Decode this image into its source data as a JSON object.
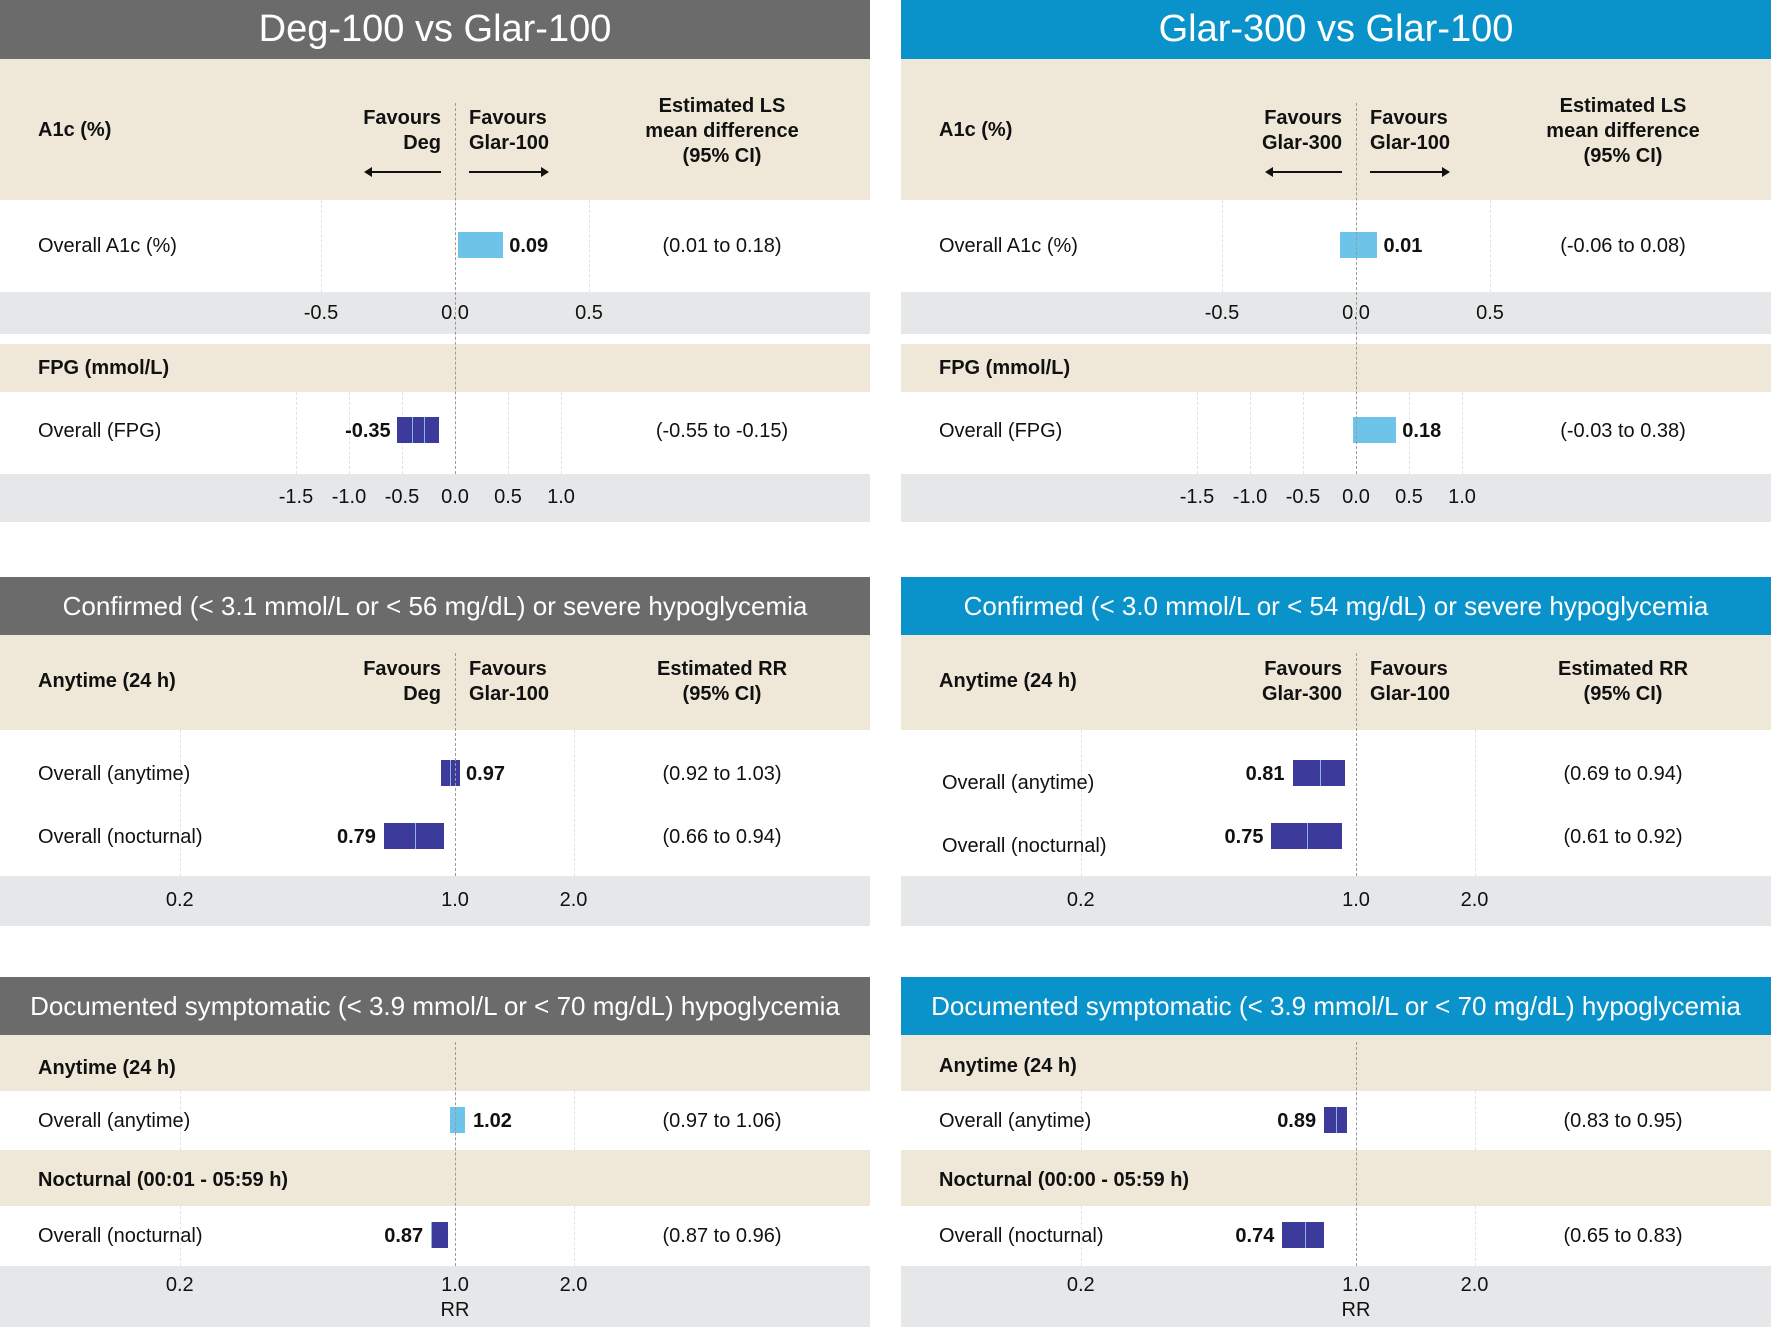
{
  "columns": [
    {
      "title": "Deg-100 vs Glar-100",
      "theme": "gray",
      "favours_left": [
        "Favours",
        "Deg"
      ],
      "favours_right": [
        "Favours",
        "Glar-100"
      ],
      "a1c": {
        "label": "A1c (%)",
        "est_header": [
          "Estimated LS",
          "mean difference",
          "(95% CI)"
        ],
        "row_label": "Overall A1c (%)",
        "value_label": "0.09",
        "ci": "(0.01 to 0.18)",
        "ticks": [
          "-0.5",
          "0.0",
          "0.5"
        ]
      },
      "fpg": {
        "label": "FPG (mmol/L)",
        "row_label": "Overall (FPG)",
        "value_label": "-0.35",
        "ci": "(-0.55 to -0.15)",
        "ticks": [
          "-1.5",
          "-1.0",
          "-0.5",
          "0.0",
          "0.5",
          "1.0"
        ]
      },
      "confirmed": {
        "title": "Confirmed (< 3.1 mmol/L or < 56 mg/dL) or severe hypoglycemia",
        "label": "Anytime (24 h)",
        "est_header": [
          "Estimated RR",
          "(95% CI)"
        ],
        "rows": [
          {
            "label": "Overall (anytime)",
            "value_label": "0.97",
            "ci": "(0.92 to 1.03)"
          },
          {
            "label": "Overall (nocturnal)",
            "value_label": "0.79",
            "ci": "(0.66 to 0.94)"
          }
        ],
        "ticks": [
          "0.2",
          "1.0",
          "2.0"
        ]
      },
      "documented": {
        "title": "Documented symptomatic (< 3.9 mmol/L or < 70 mg/dL) hypoglycemia",
        "label_anytime": "Anytime (24 h)",
        "label_nocturnal": "Nocturnal (00:01 - 05:59 h)",
        "rows": [
          {
            "label": "Overall (anytime)",
            "value_label": "1.02",
            "ci": "(0.97 to 1.06)"
          },
          {
            "label": "Overall (nocturnal)",
            "value_label": "0.87",
            "ci": "(0.87 to 0.96)"
          }
        ],
        "ticks": [
          "0.2",
          "1.0",
          "2.0"
        ],
        "axis_label": "RR"
      }
    },
    {
      "title": "Glar-300 vs Glar-100",
      "theme": "blue",
      "favours_left": [
        "Favours",
        "Glar-300"
      ],
      "favours_right": [
        "Favours",
        "Glar-100"
      ],
      "a1c": {
        "label": "A1c (%)",
        "est_header": [
          "Estimated LS",
          "mean difference",
          "(95% CI)"
        ],
        "row_label": "Overall A1c (%)",
        "value_label": "0.01",
        "ci": "(-0.06 to 0.08)",
        "ticks": [
          "-0.5",
          "0.0",
          "0.5"
        ]
      },
      "fpg": {
        "label": "FPG (mmol/L)",
        "row_label": "Overall (FPG)",
        "value_label": "0.18",
        "ci": "(-0.03 to 0.38)",
        "ticks": [
          "-1.5",
          "-1.0",
          "-0.5",
          "0.0",
          "0.5",
          "1.0"
        ]
      },
      "confirmed": {
        "title": "Confirmed (< 3.0 mmol/L or < 54 mg/dL) or severe hypoglycemia",
        "label": "Anytime (24 h)",
        "est_header": [
          "Estimated RR",
          "(95% CI)"
        ],
        "rows": [
          {
            "label": "Overall (anytime)",
            "value_label": "0.81",
            "ci": "(0.69 to 0.94)"
          },
          {
            "label": "Overall (nocturnal)",
            "value_label": "0.75",
            "ci": "(0.61 to 0.92)"
          }
        ],
        "ticks": [
          "0.2",
          "1.0",
          "2.0"
        ]
      },
      "documented": {
        "title": "Documented symptomatic (< 3.9 mmol/L or < 70 mg/dL) hypoglycemia",
        "label_anytime": "Anytime (24 h)",
        "label_nocturnal": "Nocturnal (00:00 - 05:59 h)",
        "rows": [
          {
            "label": "Overall (anytime)",
            "value_label": "0.89",
            "ci": "(0.83 to 0.95)"
          },
          {
            "label": "Overall (nocturnal)",
            "value_label": "0.74",
            "ci": "(0.65 to 0.83)"
          }
        ],
        "ticks": [
          "0.2",
          "1.0",
          "2.0"
        ],
        "axis_label": "RR"
      }
    }
  ],
  "chart_data": [
    {
      "type": "bar",
      "title": "Deg-100 vs Glar-100",
      "panels": [
        {
          "name": "A1c (%)",
          "scale": "linear",
          "xlim": [
            -1.0,
            1.0
          ],
          "ref": 0.0,
          "categories": [
            "Overall A1c (%)"
          ],
          "values": [
            0.09
          ],
          "ci": [
            [
              0.01,
              0.18
            ]
          ],
          "style": [
            "light"
          ]
        },
        {
          "name": "FPG (mmol/L)",
          "scale": "linear",
          "xlim": [
            -1.8,
            1.4
          ],
          "ref": 0.0,
          "categories": [
            "Overall (FPG)"
          ],
          "values": [
            -0.35
          ],
          "ci": [
            [
              -0.55,
              -0.15
            ]
          ],
          "style": [
            "dark"
          ]
        },
        {
          "name": "Confirmed (< 3.1 mmol/L or < 56 mg/dL) or severe hypoglycemia",
          "scale": "log",
          "xlim": [
            0.1,
            3.0
          ],
          "ref": 1.0,
          "categories": [
            "Overall (anytime)",
            "Overall (nocturnal)"
          ],
          "values": [
            0.97,
            0.79
          ],
          "ci": [
            [
              0.92,
              1.03
            ],
            [
              0.66,
              0.94
            ]
          ],
          "style": [
            "dark",
            "dark"
          ]
        },
        {
          "name": "Documented symptomatic (< 3.9 mmol/L or < 70 mg/dL) hypoglycemia",
          "scale": "log",
          "xlim": [
            0.1,
            3.0
          ],
          "ref": 1.0,
          "xlabel": "RR",
          "categories": [
            "Overall (anytime)",
            "Overall (nocturnal)"
          ],
          "values": [
            1.02,
            0.87
          ],
          "ci": [
            [
              0.97,
              1.06
            ],
            [
              0.87,
              0.96
            ]
          ],
          "style": [
            "light",
            "dark"
          ]
        }
      ]
    },
    {
      "type": "bar",
      "title": "Glar-300 vs Glar-100",
      "panels": [
        {
          "name": "A1c (%)",
          "scale": "linear",
          "xlim": [
            -1.0,
            1.0
          ],
          "ref": 0.0,
          "categories": [
            "Overall A1c (%)"
          ],
          "values": [
            0.01
          ],
          "ci": [
            [
              -0.06,
              0.08
            ]
          ],
          "style": [
            "light"
          ]
        },
        {
          "name": "FPG (mmol/L)",
          "scale": "linear",
          "xlim": [
            -1.8,
            1.4
          ],
          "ref": 0.0,
          "categories": [
            "Overall (FPG)"
          ],
          "values": [
            0.18
          ],
          "ci": [
            [
              -0.03,
              0.38
            ]
          ],
          "style": [
            "light"
          ]
        },
        {
          "name": "Confirmed (< 3.0 mmol/L or < 54 mg/dL) or severe hypoglycemia",
          "scale": "log",
          "xlim": [
            0.1,
            3.0
          ],
          "ref": 1.0,
          "categories": [
            "Overall (anytime)",
            "Overall (nocturnal)"
          ],
          "values": [
            0.81,
            0.75
          ],
          "ci": [
            [
              0.69,
              0.94
            ],
            [
              0.61,
              0.92
            ]
          ],
          "style": [
            "dark",
            "dark"
          ]
        },
        {
          "name": "Documented symptomatic (< 3.9 mmol/L or < 70 mg/dL) hypoglycemia",
          "scale": "log",
          "xlim": [
            0.1,
            3.0
          ],
          "ref": 1.0,
          "xlabel": "RR",
          "categories": [
            "Overall (anytime)",
            "Overall (nocturnal)"
          ],
          "values": [
            0.89,
            0.74
          ],
          "ci": [
            [
              0.83,
              0.95
            ],
            [
              0.65,
              0.83
            ]
          ],
          "style": [
            "dark",
            "dark"
          ]
        }
      ]
    }
  ],
  "colors": {
    "gray_header": "#6b6b6b",
    "blue_header": "#0a93cb",
    "beige": "#efe8d8",
    "axis_band": "#e6e7e8",
    "light_bar": "#6ec3e8",
    "dark_bar": "#3c3a9b"
  }
}
